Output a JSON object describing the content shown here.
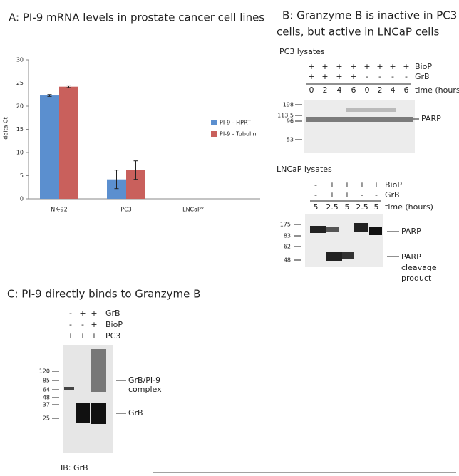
{
  "chart_data": {
    "type": "bar",
    "title": "A: PI-9 mRNA levels in prostate cancer cell lines",
    "y_label": "delta Ct",
    "categories": [
      "NK-92",
      "PC3",
      "LNCaP*"
    ],
    "series": [
      {
        "name": "PI-9 - HPRT",
        "color": "#5b8fcf",
        "values": [
          22.3,
          4.2,
          null
        ],
        "errors": [
          0.2,
          2.0,
          null
        ]
      },
      {
        "name": "PI-9 - Tubulin",
        "color": "#c9605c",
        "values": [
          24.2,
          6.2,
          null
        ],
        "errors": [
          0.2,
          2.0,
          null
        ]
      }
    ],
    "ylim": [
      0,
      30
    ],
    "yticks": [
      0,
      5,
      10,
      15,
      20,
      25,
      30
    ],
    "grid": false,
    "legend": "right"
  },
  "panel_b": {
    "title_lines": [
      "B: Granzyme B is inactive in PC3",
      "cells, but active in LNCaP cells"
    ],
    "pc3": {
      "label": "PC3 lysates",
      "rows": [
        {
          "name": "BioP",
          "cells": [
            "+",
            "+",
            "+",
            "+",
            "+",
            "+",
            "+",
            "+"
          ]
        },
        {
          "name": "GrB",
          "cells": [
            "+",
            "+",
            "+",
            "+",
            "-",
            "-",
            "-",
            "-"
          ]
        },
        {
          "name": "time (hours)",
          "cells": [
            "0",
            "2",
            "4",
            "6",
            "0",
            "2",
            "4",
            "6"
          ]
        }
      ],
      "markers": [
        "198",
        "113.5",
        "96",
        "53"
      ],
      "band_labels": [
        "PARP"
      ]
    },
    "lncap": {
      "label": "LNCaP lysates",
      "rows": [
        {
          "name": "BioP",
          "cells": [
            "-",
            "+",
            "+",
            "+",
            "+"
          ]
        },
        {
          "name": "GrB",
          "cells": [
            "-",
            "+",
            "+",
            "-",
            "-"
          ]
        },
        {
          "name": "time (hours)",
          "cells": [
            "5",
            "2.5",
            "5",
            "2.5",
            "5"
          ]
        }
      ],
      "markers": [
        "175",
        "83",
        "62",
        "48"
      ],
      "band_labels": [
        "PARP",
        "PARP",
        "cleavage",
        "product"
      ]
    }
  },
  "panel_c": {
    "title": "C: PI-9 directly binds to Granzyme B",
    "rows": [
      {
        "name": "GrB",
        "cells": [
          "-",
          "+",
          "+"
        ]
      },
      {
        "name": "BioP",
        "cells": [
          "-",
          "-",
          "+"
        ]
      },
      {
        "name": "PC3",
        "cells": [
          "+",
          "+",
          "+"
        ]
      }
    ],
    "markers": [
      "120",
      "85",
      "64",
      "48",
      "37",
      "25"
    ],
    "band_labels": [
      "GrB/PI-9",
      "complex",
      "GrB"
    ],
    "footer": "IB: GrB"
  }
}
